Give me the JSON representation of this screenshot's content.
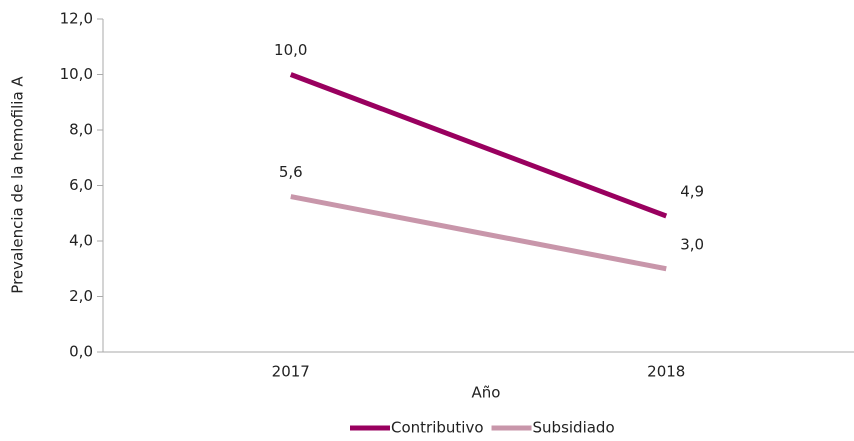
{
  "chart_data": {
    "type": "line",
    "y_label": "Prevalencia de la hemofilia A",
    "x_label": "Año",
    "categories": [
      "2017",
      "2018"
    ],
    "series": [
      {
        "name": "Contributivo",
        "color": "#99005f",
        "values": [
          10.0,
          4.9
        ],
        "value_labels": [
          "10,0",
          "4,9"
        ]
      },
      {
        "name": "Subsidiado",
        "color": "#c896aa",
        "values": [
          5.6,
          3.0
        ],
        "value_labels": [
          "5,6",
          "3,0"
        ]
      }
    ],
    "ylim": [
      0,
      12
    ],
    "yticks": [
      {
        "value": 0,
        "label": "0,0"
      },
      {
        "value": 2,
        "label": "2,0"
      },
      {
        "value": 4,
        "label": "4,0"
      },
      {
        "value": 6,
        "label": "6,0"
      },
      {
        "value": 8,
        "label": "8,0"
      },
      {
        "value": 10,
        "label": "10,0"
      },
      {
        "value": 12,
        "label": "12,0"
      }
    ],
    "grid": false,
    "legend": "bottom"
  }
}
